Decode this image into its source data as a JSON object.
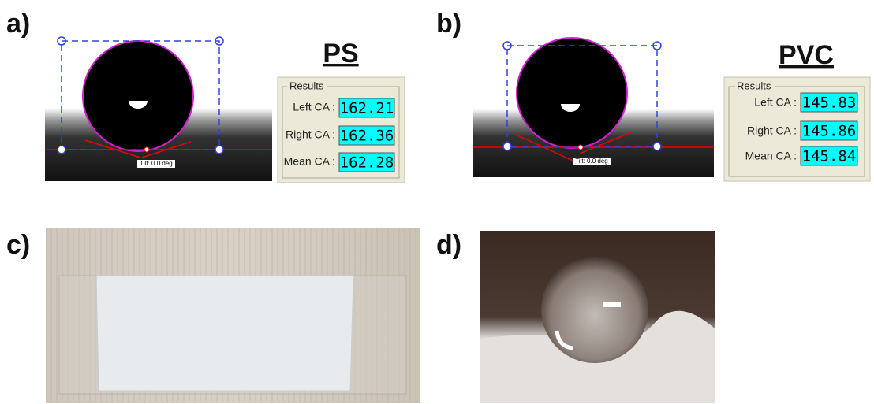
{
  "panels": [
    {
      "label": "a)",
      "material": "PS",
      "tilt": "Tilt: 0.0 deg",
      "results": {
        "title": "Results",
        "rows": [
          [
            "Left CA :",
            "162.21"
          ],
          [
            "Right CA :",
            "162.36"
          ],
          [
            "Mean CA :",
            "162.28"
          ]
        ]
      }
    },
    {
      "label": "b)",
      "material": "PVC",
      "tilt": "Tilt: 0.0 deg",
      "results": {
        "title": "Results",
        "rows": [
          [
            "Left CA :",
            "145.83"
          ],
          [
            "Right CA :",
            "145.86"
          ],
          [
            "Mean CA :",
            "145.84"
          ]
        ]
      }
    },
    {
      "label": "c)"
    },
    {
      "label": "d)"
    }
  ]
}
